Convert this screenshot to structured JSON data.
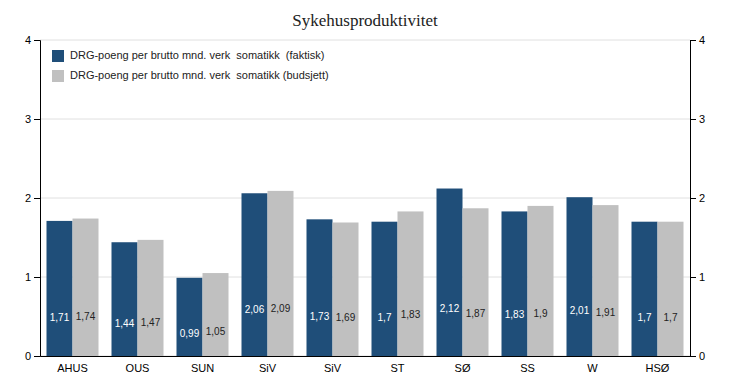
{
  "chart_data": {
    "type": "bar",
    "title": "Sykehusproduktivitet",
    "categories": [
      "AHUS",
      "OUS",
      "SUN",
      "SiV",
      "SiV",
      "ST",
      "SØ",
      "SS",
      "W",
      "HSØ"
    ],
    "series": [
      {
        "name": "DRG-poeng per brutto mnd. verk  somatikk  (faktisk)",
        "color": "#1f4e79",
        "values": [
          1.71,
          1.44,
          0.99,
          2.06,
          1.73,
          1.7,
          2.12,
          1.83,
          2.01,
          1.7
        ],
        "value_labels": [
          "1,71",
          "1,44",
          "0,99",
          "2,06",
          "1,73",
          "1,7",
          "2,12",
          "1,83",
          "2,01",
          "1,7"
        ]
      },
      {
        "name": "DRG-poeng per brutto mnd. verk  somatikk (budsjett)",
        "color": "#c0c0c0",
        "values": [
          1.74,
          1.47,
          1.05,
          2.09,
          1.69,
          1.83,
          1.87,
          1.9,
          1.91,
          1.7
        ],
        "value_labels": [
          "1,74",
          "1,47",
          "1,05",
          "2,09",
          "1,69",
          "1,83",
          "1,87",
          "1,9",
          "1,91",
          "1,7"
        ]
      }
    ],
    "ylim": [
      0,
      4
    ],
    "yticks": [
      0,
      1,
      2,
      3,
      4
    ],
    "y2lim": [
      0,
      4
    ],
    "y2ticks": [
      0,
      1,
      2,
      3,
      4
    ],
    "grid": true,
    "legend": "upper left",
    "data_labels": true
  }
}
